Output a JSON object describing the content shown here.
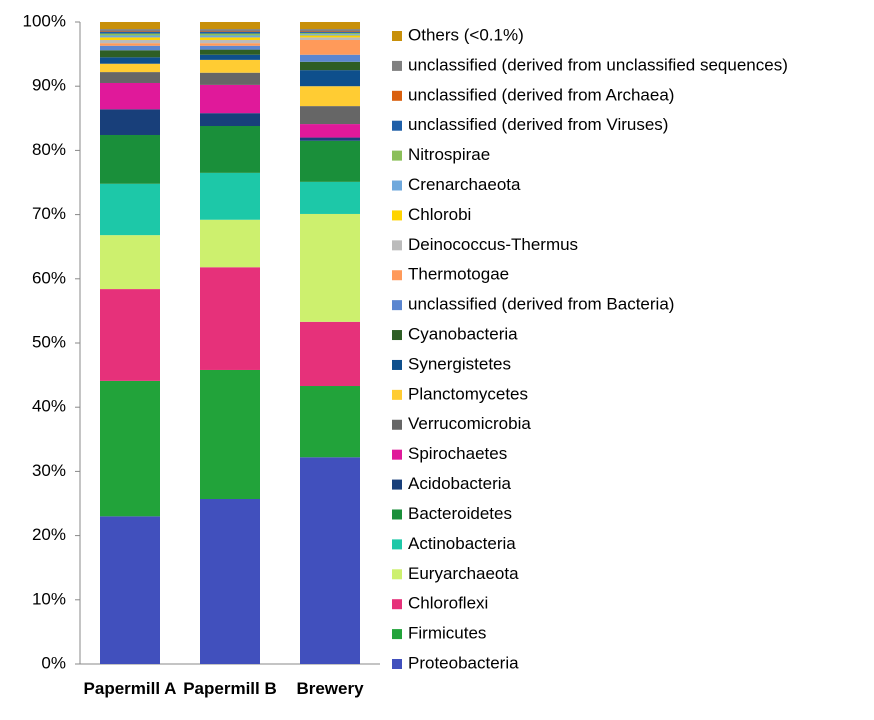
{
  "chart_data": {
    "type": "stacked_bar",
    "categories": [
      "Papermill A",
      "Papermill B",
      "Brewery"
    ],
    "ylim": [
      0,
      100
    ],
    "yticks": [
      {
        "value": 0,
        "label": "0%"
      },
      {
        "value": 10,
        "label": "10%"
      },
      {
        "value": 20,
        "label": "20%"
      },
      {
        "value": 30,
        "label": "30%"
      },
      {
        "value": 40,
        "label": "40%"
      },
      {
        "value": 50,
        "label": "50%"
      },
      {
        "value": 60,
        "label": "60%"
      },
      {
        "value": 70,
        "label": "70%"
      },
      {
        "value": 80,
        "label": "80%"
      },
      {
        "value": 90,
        "label": "90%"
      },
      {
        "value": 100,
        "label": "100%"
      }
    ],
    "series": [
      {
        "name": "Proteobacteria",
        "color": "#4150bd",
        "values": [
          23.0,
          25.7,
          32.2
        ]
      },
      {
        "name": "Firmicutes",
        "color": "#22a33a",
        "values": [
          21.1,
          20.1,
          11.1
        ]
      },
      {
        "name": "Chloroflexi",
        "color": "#e6317a",
        "values": [
          14.3,
          16.0,
          10.0
        ]
      },
      {
        "name": "Euryarchaeota",
        "color": "#cdf06e",
        "values": [
          8.4,
          7.4,
          16.8
        ]
      },
      {
        "name": "Actinobacteria",
        "color": "#1dc8a8",
        "values": [
          8.0,
          7.3,
          5.0
        ]
      },
      {
        "name": "Bacteroidetes",
        "color": "#1a8f3a",
        "values": [
          7.6,
          7.3,
          6.4
        ]
      },
      {
        "name": "Acidobacteria",
        "color": "#183f7a",
        "values": [
          4.0,
          2.0,
          0.5
        ]
      },
      {
        "name": "Spirochaetes",
        "color": "#e0199a",
        "values": [
          4.1,
          4.4,
          2.1
        ]
      },
      {
        "name": "Verrucomicrobia",
        "color": "#666666",
        "values": [
          1.7,
          1.9,
          2.8
        ]
      },
      {
        "name": "Planctomycetes",
        "color": "#ffcc33",
        "values": [
          1.3,
          2.0,
          3.1
        ]
      },
      {
        "name": "Synergistetes",
        "color": "#0e4f8c",
        "values": [
          1.0,
          0.8,
          2.5
        ]
      },
      {
        "name": "Cyanobacteria",
        "color": "#2e5e25",
        "values": [
          1.1,
          0.8,
          1.3
        ]
      },
      {
        "name": "unclassified (derived from Bacteria)",
        "color": "#5b86d0",
        "values": [
          0.7,
          0.6,
          1.1
        ]
      },
      {
        "name": "Thermotogae",
        "color": "#ff9a5a",
        "values": [
          0.4,
          0.4,
          2.3
        ]
      },
      {
        "name": "Deinococcus-Thermus",
        "color": "#bbbbbb",
        "values": [
          0.5,
          0.5,
          0.4
        ]
      },
      {
        "name": "Chlorobi",
        "color": "#ffd400",
        "values": [
          0.4,
          0.4,
          0.3
        ]
      },
      {
        "name": "Crenarchaeota",
        "color": "#6fa8dc",
        "values": [
          0.3,
          0.3,
          0.2
        ]
      },
      {
        "name": "Nitrospirae",
        "color": "#8bbf5a",
        "values": [
          0.3,
          0.3,
          0.2
        ]
      },
      {
        "name": "unclassified (derived from Viruses)",
        "color": "#1f5fa8",
        "values": [
          0.3,
          0.3,
          0.2
        ]
      },
      {
        "name": "unclassified (derived from Archaea)",
        "color": "#d95f0e",
        "values": [
          0.1,
          0.1,
          0.1
        ]
      },
      {
        "name": "unclassified (derived from unclassified sequences)",
        "color": "#808080",
        "values": [
          0.3,
          0.3,
          0.3
        ]
      },
      {
        "name": "Others (<0.1%)",
        "color": "#c8900a",
        "values": [
          1.1,
          1.1,
          1.1
        ]
      }
    ]
  }
}
